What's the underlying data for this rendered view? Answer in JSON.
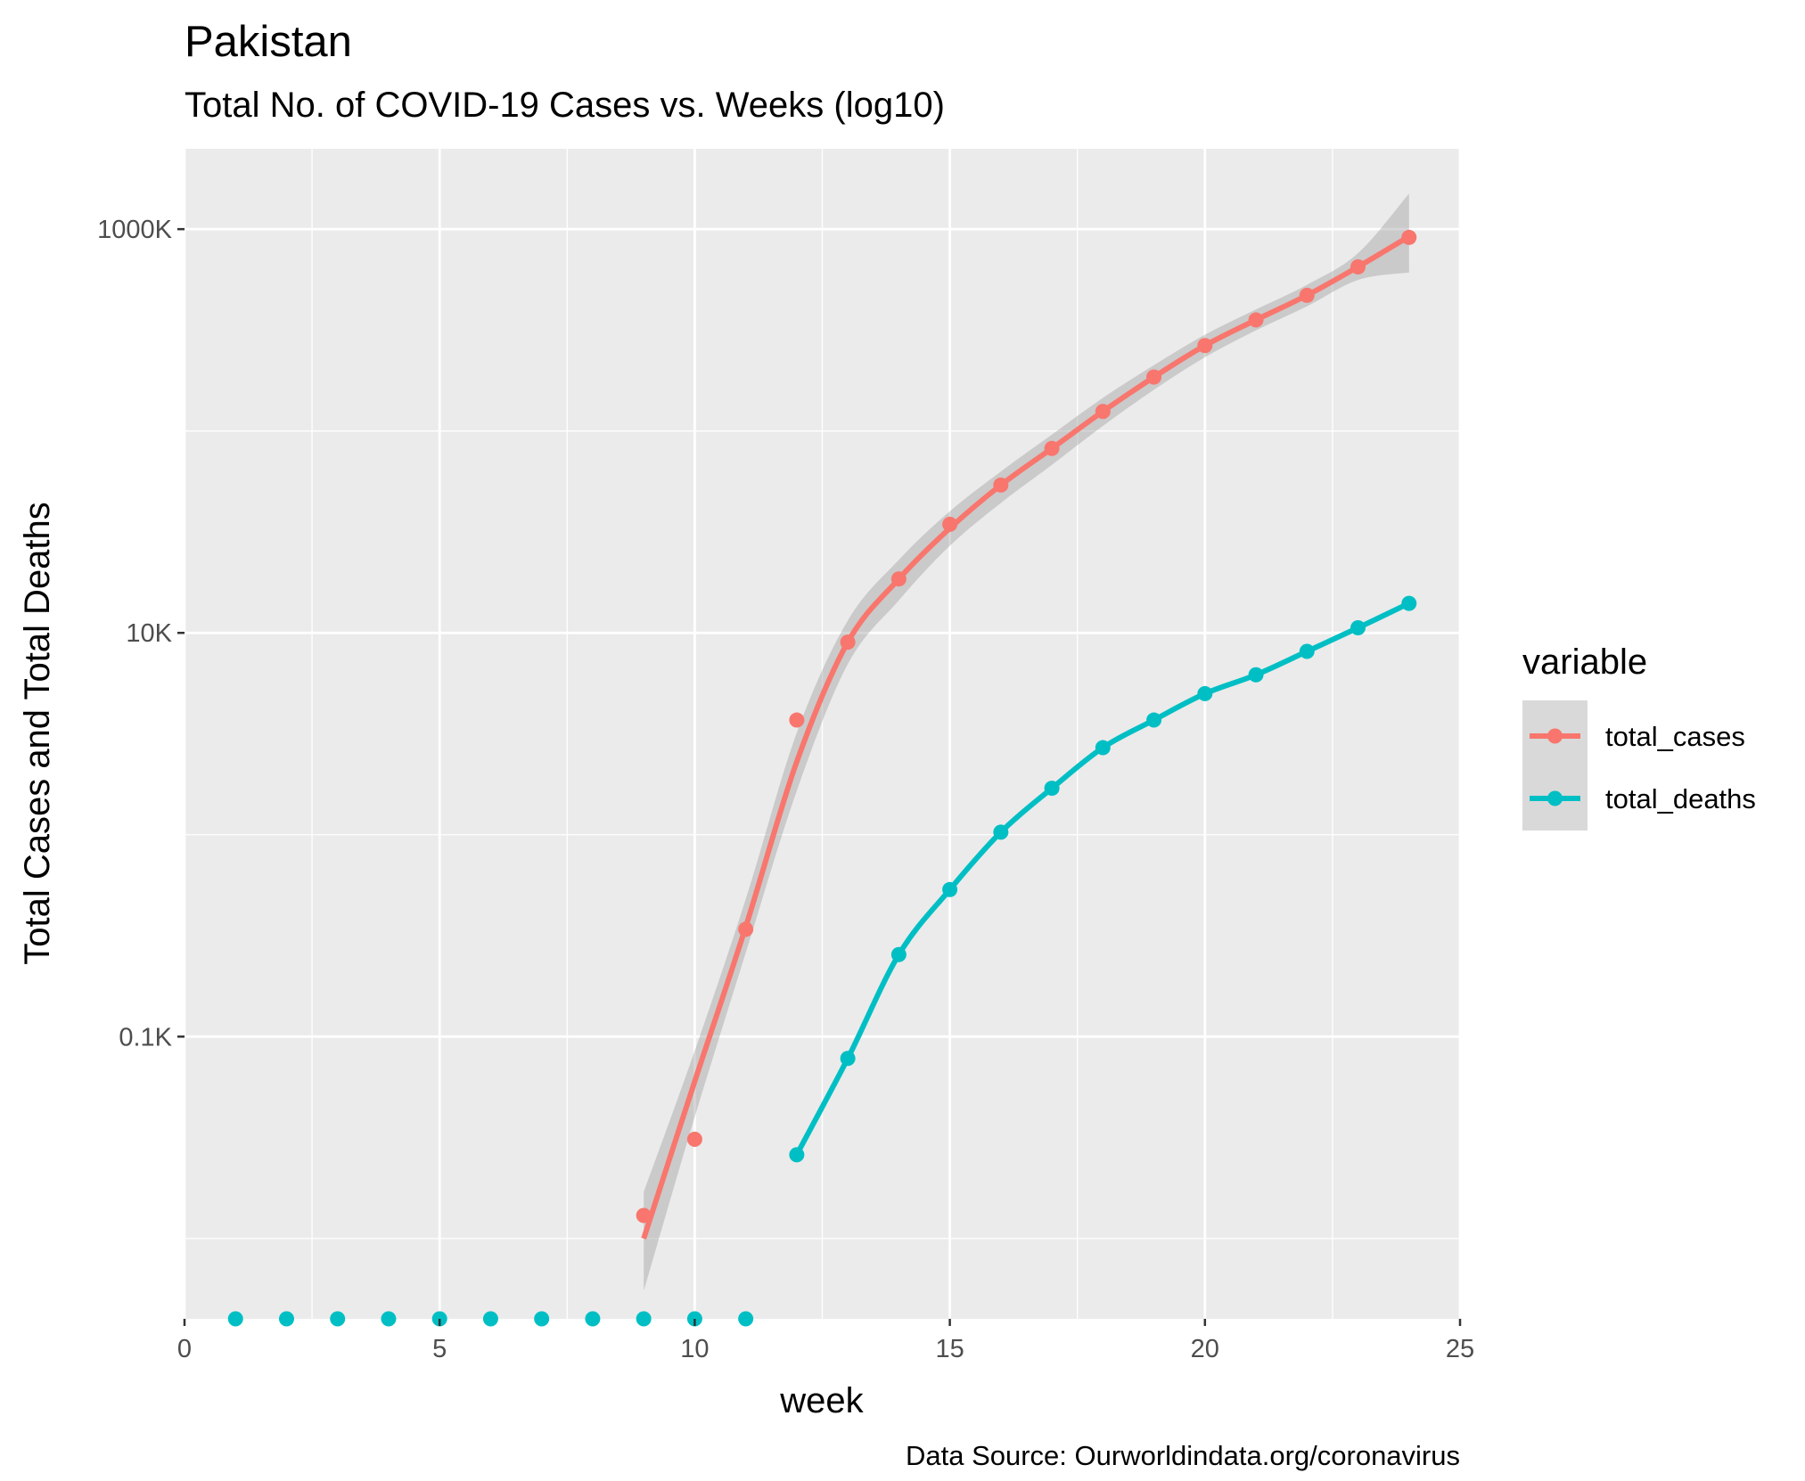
{
  "chart_data": {
    "type": "line",
    "title": "Pakistan",
    "subtitle": "Total No. of COVID-19 Cases vs. Weeks (log10)",
    "xlabel": "week",
    "ylabel": "Total Cases and Total Deaths",
    "caption": "Data Source: Ourworldindata.org/coronavirus",
    "y_scale": "log10",
    "xlim": [
      0,
      25
    ],
    "ylim": [
      4,
      2500000
    ],
    "x_ticks": [
      0,
      5,
      10,
      15,
      20,
      25
    ],
    "x_tick_labels": [
      "0",
      "5",
      "10",
      "15",
      "20",
      "25"
    ],
    "y_ticks": [
      100,
      10000,
      1000000
    ],
    "y_tick_labels": [
      "0.1K",
      "10K",
      "1000K"
    ],
    "grid": true,
    "legend": {
      "title": "variable",
      "position": "right",
      "entries": [
        "total_cases",
        "total_deaths"
      ]
    },
    "smoothing_band": true,
    "series": [
      {
        "name": "total_cases",
        "color": "#F8766D",
        "points": [
          {
            "x": 9,
            "y": 13
          },
          {
            "x": 10,
            "y": 31
          },
          {
            "x": 11,
            "y": 340
          },
          {
            "x": 12,
            "y": 3700
          },
          {
            "x": 13,
            "y": 9000
          },
          {
            "x": 14,
            "y": 18500
          },
          {
            "x": 15,
            "y": 34500
          },
          {
            "x": 16,
            "y": 54000
          },
          {
            "x": 17,
            "y": 82000
          },
          {
            "x": 18,
            "y": 125000
          },
          {
            "x": 19,
            "y": 185000
          },
          {
            "x": 20,
            "y": 265000
          },
          {
            "x": 21,
            "y": 355000
          },
          {
            "x": 22,
            "y": 470000
          },
          {
            "x": 23,
            "y": 650000
          },
          {
            "x": 24,
            "y": 910000
          }
        ],
        "fit": [
          {
            "x": 9,
            "y": 10
          },
          {
            "x": 10,
            "y": 60
          },
          {
            "x": 11,
            "y": 350
          },
          {
            "x": 12,
            "y": 2300
          },
          {
            "x": 13,
            "y": 9000
          },
          {
            "x": 14,
            "y": 18500
          },
          {
            "x": 15,
            "y": 33000
          },
          {
            "x": 16,
            "y": 54000
          },
          {
            "x": 17,
            "y": 82000
          },
          {
            "x": 18,
            "y": 125000
          },
          {
            "x": 19,
            "y": 185000
          },
          {
            "x": 20,
            "y": 265000
          },
          {
            "x": 21,
            "y": 355000
          },
          {
            "x": 22,
            "y": 470000
          },
          {
            "x": 23,
            "y": 650000
          },
          {
            "x": 24,
            "y": 920000
          }
        ],
        "band": [
          {
            "x": 9,
            "lo": 5.5,
            "hi": 17
          },
          {
            "x": 10,
            "lo": 40,
            "hi": 85
          },
          {
            "x": 11,
            "lo": 260,
            "hi": 480
          },
          {
            "x": 12,
            "lo": 1650,
            "hi": 3200
          },
          {
            "x": 13,
            "lo": 7000,
            "hi": 11500
          },
          {
            "x": 14,
            "lo": 14500,
            "hi": 23000
          },
          {
            "x": 15,
            "lo": 27000,
            "hi": 40000
          },
          {
            "x": 16,
            "lo": 44000,
            "hi": 63000
          },
          {
            "x": 17,
            "lo": 68000,
            "hi": 96000
          },
          {
            "x": 18,
            "lo": 106000,
            "hi": 146000
          },
          {
            "x": 19,
            "lo": 160000,
            "hi": 212000
          },
          {
            "x": 20,
            "lo": 232000,
            "hi": 300000
          },
          {
            "x": 21,
            "lo": 315000,
            "hi": 400000
          },
          {
            "x": 22,
            "lo": 415000,
            "hi": 530000
          },
          {
            "x": 23,
            "lo": 560000,
            "hi": 760000
          },
          {
            "x": 24,
            "lo": 610000,
            "hi": 1500000
          }
        ]
      },
      {
        "name": "total_deaths",
        "color": "#00BFC4",
        "points": [
          {
            "x": 1,
            "y": 0
          },
          {
            "x": 2,
            "y": 0
          },
          {
            "x": 3,
            "y": 0
          },
          {
            "x": 4,
            "y": 0
          },
          {
            "x": 5,
            "y": 0
          },
          {
            "x": 6,
            "y": 0
          },
          {
            "x": 7,
            "y": 0
          },
          {
            "x": 8,
            "y": 0
          },
          {
            "x": 9,
            "y": 0
          },
          {
            "x": 10,
            "y": 0
          },
          {
            "x": 11,
            "y": 0
          },
          {
            "x": 12,
            "y": 26
          },
          {
            "x": 13,
            "y": 78
          },
          {
            "x": 14,
            "y": 255
          },
          {
            "x": 15,
            "y": 535
          },
          {
            "x": 16,
            "y": 1030
          },
          {
            "x": 17,
            "y": 1700
          },
          {
            "x": 18,
            "y": 2700
          },
          {
            "x": 19,
            "y": 3700
          },
          {
            "x": 20,
            "y": 5000
          },
          {
            "x": 21,
            "y": 6200
          },
          {
            "x": 22,
            "y": 8100
          },
          {
            "x": 23,
            "y": 10600
          },
          {
            "x": 24,
            "y": 14000
          }
        ],
        "fit": [
          {
            "x": 12,
            "y": 26
          },
          {
            "x": 13,
            "y": 78
          },
          {
            "x": 14,
            "y": 255
          },
          {
            "x": 15,
            "y": 535
          },
          {
            "x": 16,
            "y": 1030
          },
          {
            "x": 17,
            "y": 1700
          },
          {
            "x": 18,
            "y": 2700
          },
          {
            "x": 19,
            "y": 3700
          },
          {
            "x": 20,
            "y": 5000
          },
          {
            "x": 21,
            "y": 6200
          },
          {
            "x": 22,
            "y": 8100
          },
          {
            "x": 23,
            "y": 10600
          },
          {
            "x": 24,
            "y": 14000
          }
        ]
      }
    ]
  }
}
